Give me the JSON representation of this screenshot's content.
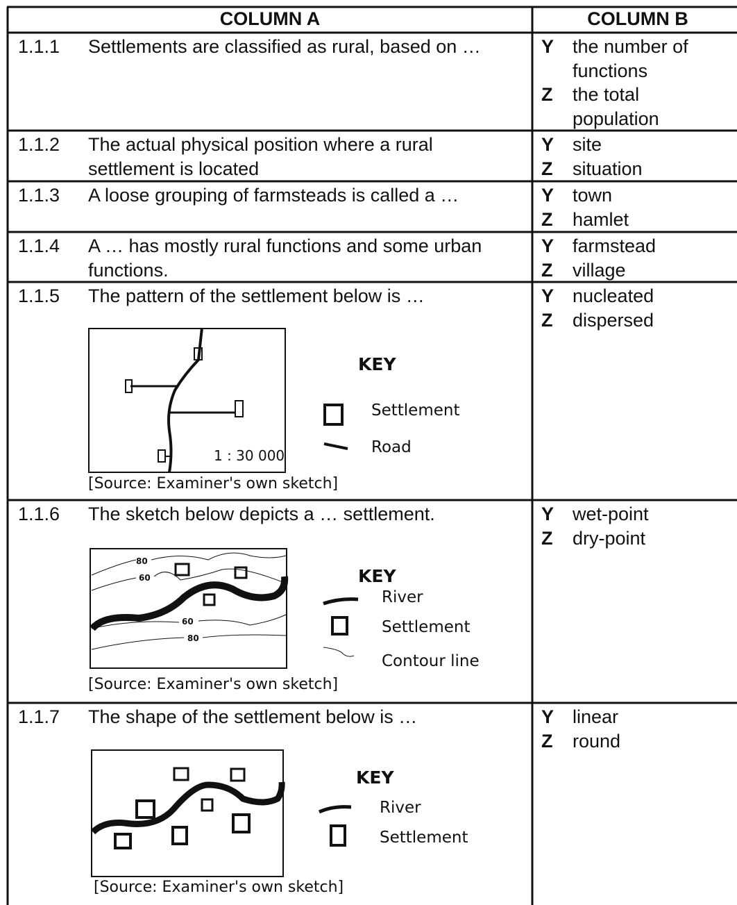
{
  "table": {
    "headers": [
      "COLUMN A",
      "COLUMN B"
    ],
    "rows": [
      {
        "number": "1.1.1",
        "question": "Settlements are classified as rural, based on …",
        "options": [
          {
            "letter": "Y",
            "text": "the number of functions"
          },
          {
            "letter": "Z",
            "text": "the total population"
          }
        ]
      },
      {
        "number": "1.1.2",
        "question": "The actual physical position where a rural settlement is located",
        "options": [
          {
            "letter": "Y",
            "text": "site"
          },
          {
            "letter": "Z",
            "text": "situation"
          }
        ]
      },
      {
        "number": "1.1.3",
        "question": "A loose grouping of farmsteads is called a …",
        "options": [
          {
            "letter": "Y",
            "text": "town"
          },
          {
            "letter": "Z",
            "text": "hamlet"
          }
        ]
      },
      {
        "number": "1.1.4",
        "question": "A … has mostly rural functions and some urban functions.",
        "options": [
          {
            "letter": "Y",
            "text": "farmstead"
          },
          {
            "letter": "Z",
            "text": "village"
          }
        ]
      },
      {
        "number": "1.1.5",
        "question": "The pattern of the settlement below is …",
        "options": [
          {
            "letter": "Y",
            "text": "nucleated"
          },
          {
            "letter": "Z",
            "text": "dispersed"
          }
        ],
        "sketch": {
          "scale": "1 : 30 000",
          "key_title": "KEY",
          "key": [
            "Settlement",
            "Road"
          ],
          "source": "[Source: Examiner's own sketch]"
        }
      },
      {
        "number": "1.1.6",
        "question": "The sketch below depicts a … settlement.",
        "options": [
          {
            "letter": "Y",
            "text": "wet-point"
          },
          {
            "letter": "Z",
            "text": "dry-point"
          }
        ],
        "sketch": {
          "contour_labels": [
            "80",
            "60",
            "60",
            "80"
          ],
          "key_title": "KEY",
          "key": [
            "River",
            "Settlement",
            "Contour line"
          ],
          "source": "[Source: Examiner's own sketch]"
        }
      },
      {
        "number": "1.1.7",
        "question": "The shape of the settlement below is …",
        "options": [
          {
            "letter": "Y",
            "text": "linear"
          },
          {
            "letter": "Z",
            "text": "round"
          }
        ],
        "sketch": {
          "key_title": "KEY",
          "key": [
            "River",
            "Settlement"
          ],
          "source": "[Source: Examiner's own sketch]"
        }
      }
    ]
  }
}
